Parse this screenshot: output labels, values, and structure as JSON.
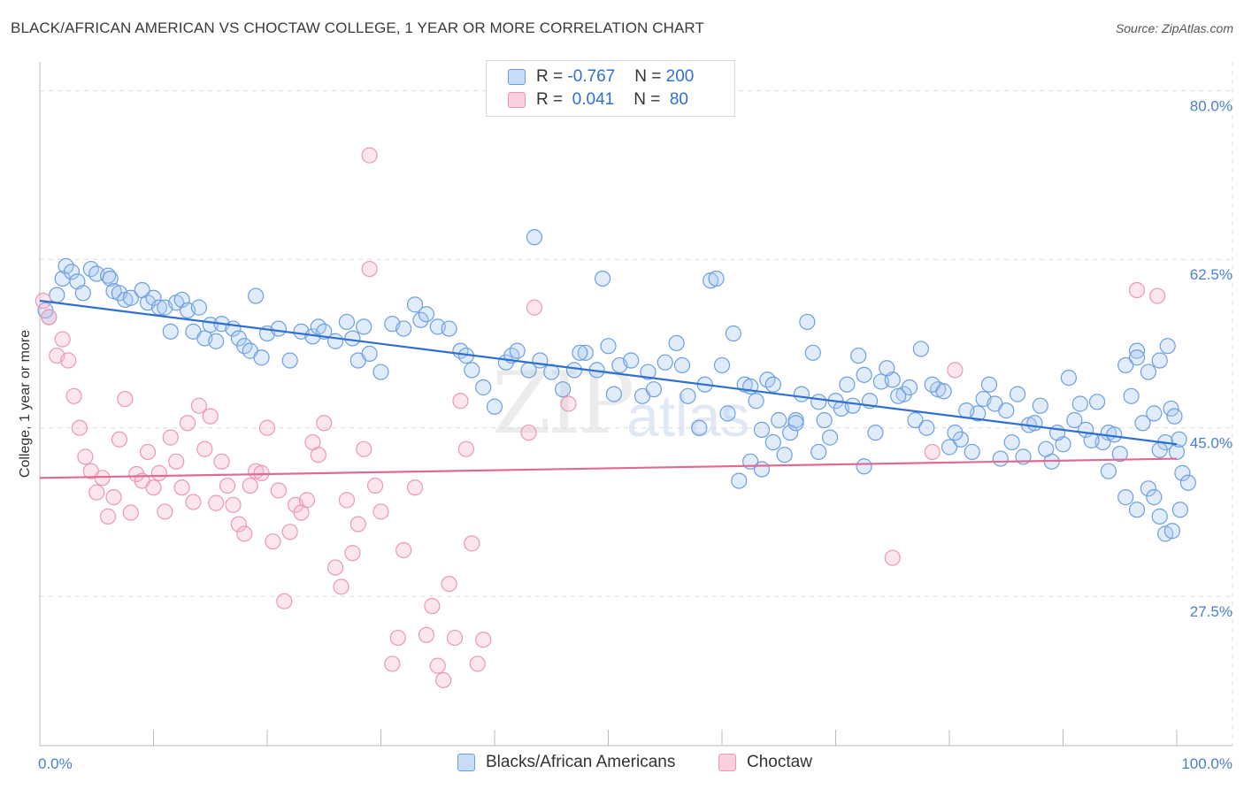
{
  "header": {
    "title": "BLACK/AFRICAN AMERICAN VS CHOCTAW COLLEGE, 1 YEAR OR MORE CORRELATION CHART",
    "source": "Source: ZipAtlas.com"
  },
  "watermark": {
    "part1": "ZIP",
    "part2": "atlas"
  },
  "legend": {
    "rows": [
      {
        "r_label": "R = ",
        "r_value": "-0.767",
        "n_label": "N = ",
        "n_value": "200",
        "color": "#a8c8f0"
      },
      {
        "r_label": "R = ",
        "r_value": " 0.041",
        "n_label": "N = ",
        "n_value": " 80",
        "color": "#f5b8ca"
      }
    ]
  },
  "bottom_legend": [
    {
      "label": "Blacks/African Americans",
      "color": "#a8c8f0"
    },
    {
      "label": "Choctaw",
      "color": "#f5b8ca"
    }
  ],
  "chart_data": {
    "type": "scatter",
    "ylabel": "College, 1 year or more",
    "xlim": [
      0,
      100
    ],
    "ylim": [
      12,
      83
    ],
    "x_tick_labels": [
      "0.0%",
      "100.0%"
    ],
    "y_ticks": [
      27.5,
      45.0,
      62.5,
      80.0
    ],
    "y_tick_labels": [
      "27.5%",
      "45.0%",
      "62.5%",
      "80.0%"
    ],
    "grid": true,
    "series": [
      {
        "name": "Blacks/African Americans",
        "color": "#5b9be0",
        "trend": {
          "x": [
            0,
            100
          ],
          "y": [
            58.2,
            43.3
          ],
          "color": "#2f6fd0"
        },
        "points": [
          [
            0.8,
            56.5
          ],
          [
            0.5,
            57.2
          ],
          [
            1.5,
            58.8
          ],
          [
            2,
            60.5
          ],
          [
            2.3,
            61.8
          ],
          [
            2.8,
            61.2
          ],
          [
            3.3,
            60.2
          ],
          [
            3.8,
            59
          ],
          [
            4.5,
            61.5
          ],
          [
            5,
            61
          ],
          [
            6,
            60.8
          ],
          [
            6.2,
            60.5
          ],
          [
            6.5,
            59.2
          ],
          [
            7,
            59
          ],
          [
            7.5,
            58.3
          ],
          [
            8,
            58.5
          ],
          [
            9,
            59.3
          ],
          [
            9.5,
            58
          ],
          [
            10,
            58.5
          ],
          [
            10.5,
            57.5
          ],
          [
            11,
            57.5
          ],
          [
            11.5,
            55
          ],
          [
            12,
            58
          ],
          [
            12.5,
            58.3
          ],
          [
            13,
            57.2
          ],
          [
            13.5,
            55
          ],
          [
            14,
            57.5
          ],
          [
            14.5,
            54.3
          ],
          [
            15,
            55.7
          ],
          [
            15.5,
            54
          ],
          [
            16,
            55.8
          ],
          [
            17,
            55.3
          ],
          [
            17.5,
            54.3
          ],
          [
            18,
            53.5
          ],
          [
            18.5,
            53
          ],
          [
            19,
            58.7
          ],
          [
            19.5,
            52.3
          ],
          [
            20,
            54.8
          ],
          [
            21,
            55.3
          ],
          [
            22,
            52
          ],
          [
            23,
            55
          ],
          [
            24,
            54.5
          ],
          [
            24.5,
            55.5
          ],
          [
            25,
            55
          ],
          [
            26,
            54
          ],
          [
            27,
            56
          ],
          [
            27.5,
            54.3
          ],
          [
            28,
            52
          ],
          [
            28.5,
            55.5
          ],
          [
            29,
            52.7
          ],
          [
            30,
            50.8
          ],
          [
            31,
            55.8
          ],
          [
            32,
            55.3
          ],
          [
            33,
            57.8
          ],
          [
            33.5,
            56.2
          ],
          [
            34,
            56.8
          ],
          [
            35,
            55.5
          ],
          [
            36,
            55.3
          ],
          [
            37,
            53
          ],
          [
            37.5,
            52.5
          ],
          [
            38,
            51
          ],
          [
            39,
            49.2
          ],
          [
            40,
            47.2
          ],
          [
            41,
            51.8
          ],
          [
            41.5,
            52.5
          ],
          [
            42,
            53
          ],
          [
            43,
            51
          ],
          [
            44,
            52
          ],
          [
            45,
            50.8
          ],
          [
            46,
            49
          ],
          [
            47,
            51
          ],
          [
            48,
            52.8
          ],
          [
            49,
            51
          ],
          [
            50,
            53.5
          ],
          [
            51,
            51.5
          ],
          [
            52,
            52
          ],
          [
            53,
            48.3
          ],
          [
            54,
            49
          ],
          [
            55,
            51.8
          ],
          [
            56,
            53.8
          ],
          [
            57,
            48.3
          ],
          [
            58,
            45
          ],
          [
            59,
            60.3
          ],
          [
            60,
            51.5
          ],
          [
            61,
            54.8
          ],
          [
            62,
            49.5
          ],
          [
            63,
            47.8
          ],
          [
            64,
            50
          ],
          [
            65,
            45.8
          ],
          [
            66,
            44.5
          ],
          [
            67,
            48.5
          ],
          [
            68,
            52.8
          ],
          [
            69,
            45.8
          ],
          [
            70,
            47.8
          ],
          [
            71,
            49.5
          ],
          [
            72,
            52.5
          ],
          [
            72.5,
            50.5
          ],
          [
            73,
            47.8
          ],
          [
            74,
            49.8
          ],
          [
            75,
            50
          ],
          [
            76,
            48.5
          ],
          [
            77,
            45.8
          ],
          [
            78,
            45
          ],
          [
            79,
            49
          ],
          [
            80,
            43
          ],
          [
            81,
            43.8
          ],
          [
            82,
            42.5
          ],
          [
            83,
            48
          ],
          [
            84,
            47.5
          ],
          [
            85,
            46.8
          ],
          [
            86,
            48.5
          ],
          [
            87,
            45.3
          ],
          [
            88,
            47.3
          ],
          [
            89,
            41.5
          ],
          [
            90,
            43.3
          ],
          [
            91,
            45.8
          ],
          [
            92,
            44.8
          ],
          [
            93,
            47.7
          ],
          [
            94,
            44.5
          ],
          [
            95,
            42.3
          ],
          [
            96,
            48.3
          ],
          [
            97,
            45.5
          ],
          [
            98,
            46.5
          ],
          [
            99,
            43.5
          ],
          [
            99.5,
            47
          ],
          [
            100,
            42.5
          ],
          [
            47.5,
            52.8
          ],
          [
            50.5,
            48.5
          ],
          [
            53.5,
            50.8
          ],
          [
            56.5,
            51.5
          ],
          [
            58.5,
            49.5
          ],
          [
            60.5,
            46.5
          ],
          [
            62.5,
            49.3
          ],
          [
            64.5,
            49.5
          ],
          [
            66.5,
            45.8
          ],
          [
            68.5,
            47.7
          ],
          [
            70.5,
            47
          ],
          [
            74.5,
            51.2
          ],
          [
            76.5,
            49.2
          ],
          [
            78.5,
            49.5
          ],
          [
            80.5,
            44.5
          ],
          [
            82.5,
            46.5
          ],
          [
            84.5,
            41.8
          ],
          [
            86.5,
            42
          ],
          [
            88.5,
            42.8
          ],
          [
            90.5,
            50.2
          ],
          [
            91.5,
            47.5
          ],
          [
            93.5,
            43.5
          ],
          [
            95.5,
            51.5
          ],
          [
            96.5,
            53
          ],
          [
            97.5,
            50.8
          ],
          [
            98.5,
            52
          ],
          [
            43.5,
            64.8
          ],
          [
            49.5,
            60.5
          ],
          [
            59.5,
            60.5
          ],
          [
            61.5,
            39.5
          ],
          [
            62.5,
            41.5
          ],
          [
            63.5,
            40.7
          ],
          [
            64.5,
            43.5
          ],
          [
            65.5,
            42.2
          ],
          [
            66.5,
            45.5
          ],
          [
            67.5,
            56
          ],
          [
            68.5,
            42.5
          ],
          [
            69.5,
            44
          ],
          [
            71.5,
            47.3
          ],
          [
            73.5,
            44.5
          ],
          [
            75.5,
            48.3
          ],
          [
            77.5,
            53.2
          ],
          [
            79.5,
            48.8
          ],
          [
            81.5,
            46.8
          ],
          [
            83.5,
            49.5
          ],
          [
            85.5,
            43.5
          ],
          [
            87.5,
            45.5
          ],
          [
            89.5,
            44.5
          ],
          [
            92.5,
            43.7
          ],
          [
            94.5,
            44.3
          ],
          [
            96.5,
            52.3
          ],
          [
            98.5,
            42.7
          ],
          [
            99.2,
            53.5
          ],
          [
            94,
            40.5
          ],
          [
            95.5,
            37.8
          ],
          [
            96.5,
            36.5
          ],
          [
            97.5,
            38.7
          ],
          [
            98.5,
            35.8
          ],
          [
            99,
            34
          ],
          [
            100.2,
            43.8
          ],
          [
            99.8,
            46.2
          ],
          [
            99.6,
            34.3
          ],
          [
            100.5,
            40.3
          ],
          [
            101,
            39.3
          ],
          [
            98,
            37.8
          ],
          [
            100.3,
            36.5
          ],
          [
            72.5,
            41
          ],
          [
            63.5,
            44.8
          ]
        ]
      },
      {
        "name": "Choctaw",
        "color": "#f08aa8",
        "trend": {
          "x": [
            0,
            100
          ],
          "y": [
            39.8,
            41.8
          ],
          "color": "#e06a92"
        },
        "points": [
          [
            0.3,
            58.2
          ],
          [
            0.8,
            56.5
          ],
          [
            1.5,
            52.5
          ],
          [
            2,
            54.2
          ],
          [
            2.5,
            52
          ],
          [
            3,
            48.3
          ],
          [
            3.5,
            45
          ],
          [
            4,
            42
          ],
          [
            4.5,
            40.5
          ],
          [
            5,
            38.3
          ],
          [
            5.5,
            39.8
          ],
          [
            6,
            35.8
          ],
          [
            6.5,
            37.8
          ],
          [
            7,
            43.8
          ],
          [
            7.5,
            48
          ],
          [
            8,
            36.2
          ],
          [
            8.5,
            40.2
          ],
          [
            9,
            39.5
          ],
          [
            9.5,
            42.5
          ],
          [
            10,
            38.8
          ],
          [
            10.5,
            40.3
          ],
          [
            11,
            36.3
          ],
          [
            11.5,
            44
          ],
          [
            12,
            41.5
          ],
          [
            12.5,
            38.8
          ],
          [
            13,
            45.5
          ],
          [
            13.5,
            37.3
          ],
          [
            14,
            47.3
          ],
          [
            14.5,
            42.8
          ],
          [
            15,
            46.2
          ],
          [
            15.5,
            37.2
          ],
          [
            16,
            41.5
          ],
          [
            16.5,
            39
          ],
          [
            17,
            37
          ],
          [
            17.5,
            35
          ],
          [
            18,
            34
          ],
          [
            18.5,
            39
          ],
          [
            19,
            40.5
          ],
          [
            19.5,
            40.3
          ],
          [
            20,
            45
          ],
          [
            20.5,
            33.2
          ],
          [
            21,
            38.5
          ],
          [
            21.5,
            27
          ],
          [
            22,
            34.2
          ],
          [
            22.5,
            37
          ],
          [
            23,
            36.2
          ],
          [
            23.5,
            37.5
          ],
          [
            24,
            43.5
          ],
          [
            24.5,
            42.2
          ],
          [
            25,
            45.5
          ],
          [
            26,
            30.5
          ],
          [
            26.5,
            28.5
          ],
          [
            27,
            37.5
          ],
          [
            27.5,
            32
          ],
          [
            28,
            35
          ],
          [
            28.5,
            42.8
          ],
          [
            29,
            61.5
          ],
          [
            29.5,
            39
          ],
          [
            30,
            36.3
          ],
          [
            31,
            20.5
          ],
          [
            31.5,
            23.2
          ],
          [
            32,
            32.3
          ],
          [
            33,
            38.8
          ],
          [
            34,
            23.5
          ],
          [
            34.5,
            26.5
          ],
          [
            35,
            20.3
          ],
          [
            35.5,
            18.8
          ],
          [
            36,
            28.8
          ],
          [
            36.5,
            23.2
          ],
          [
            37,
            47.8
          ],
          [
            37.5,
            42.8
          ],
          [
            38,
            33
          ],
          [
            38.5,
            20.5
          ],
          [
            39,
            23
          ],
          [
            43,
            44.5
          ],
          [
            43.5,
            57.5
          ],
          [
            46.5,
            47.5
          ],
          [
            75,
            31.5
          ],
          [
            78.5,
            42.5
          ],
          [
            80.5,
            51
          ],
          [
            96.5,
            59.3
          ],
          [
            98.3,
            58.7
          ],
          [
            29,
            73.3
          ]
        ]
      }
    ]
  }
}
